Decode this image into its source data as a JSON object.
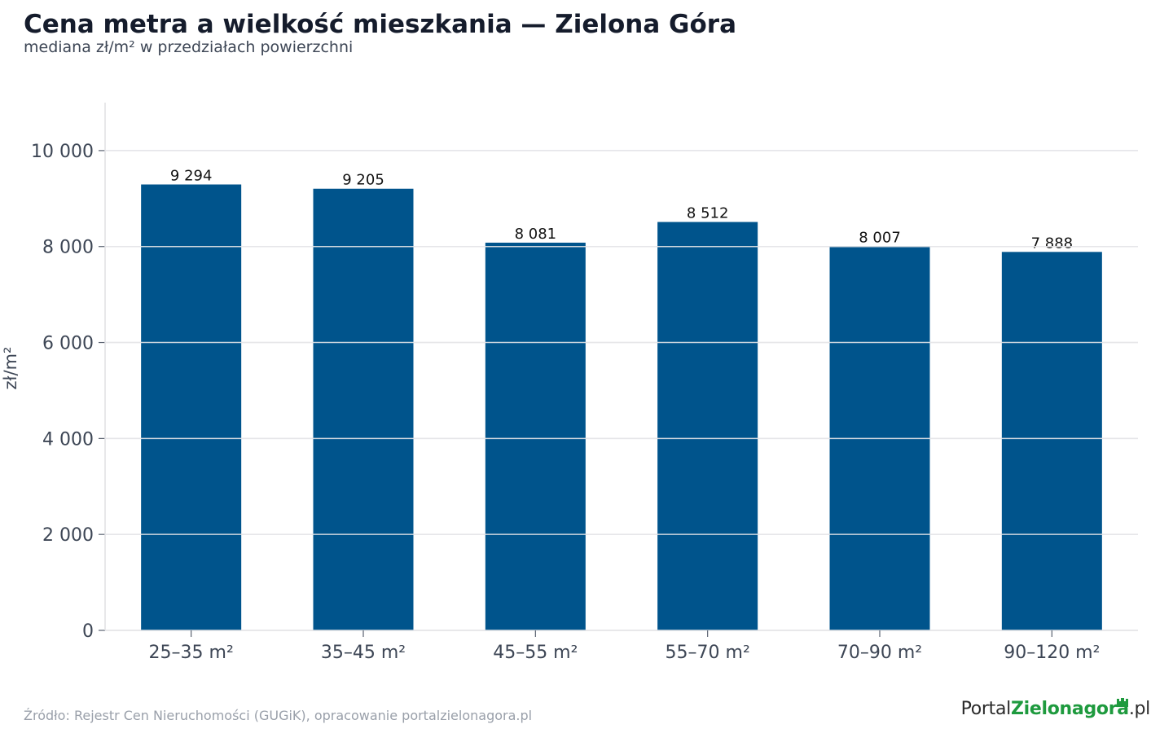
{
  "title": "Cena metra a wielkość mieszkania — Zielona Góra",
  "subtitle": "mediana zł/m² w przedziałach powierzchni",
  "source": "Źródło: Rejestr Cen Nieruchomości (GUGiK), opracowanie portalzielonagora.pl",
  "brand": {
    "part1": "Portal",
    "part2": "Zielonagora",
    "part3": ".pl",
    "icon": "castle-icon"
  },
  "colors": {
    "bar": "#00548c",
    "grid": "#e6e6e9",
    "brand_green": "#1e9a3e"
  },
  "chart_data": {
    "type": "bar",
    "title": "Cena metra a wielkość mieszkania — Zielona Góra",
    "subtitle": "mediana zł/m² w przedziałach powierzchni",
    "xlabel": "",
    "ylabel": "zł/m²",
    "categories": [
      "25–35 m²",
      "35–45 m²",
      "45–55 m²",
      "55–70 m²",
      "70–90 m²",
      "90–120 m²"
    ],
    "values": [
      9294,
      9205,
      8081,
      8512,
      8007,
      7888
    ],
    "value_labels": [
      "9 294",
      "9 205",
      "8 081",
      "8 512",
      "8 007",
      "7 888"
    ],
    "ylim": [
      0,
      11000
    ],
    "yticks": [
      0,
      2000,
      4000,
      6000,
      8000,
      10000
    ],
    "ytick_labels": [
      "0",
      "2 000",
      "4 000",
      "6 000",
      "8 000",
      "10 000"
    ],
    "grid": true,
    "legend": "none"
  }
}
